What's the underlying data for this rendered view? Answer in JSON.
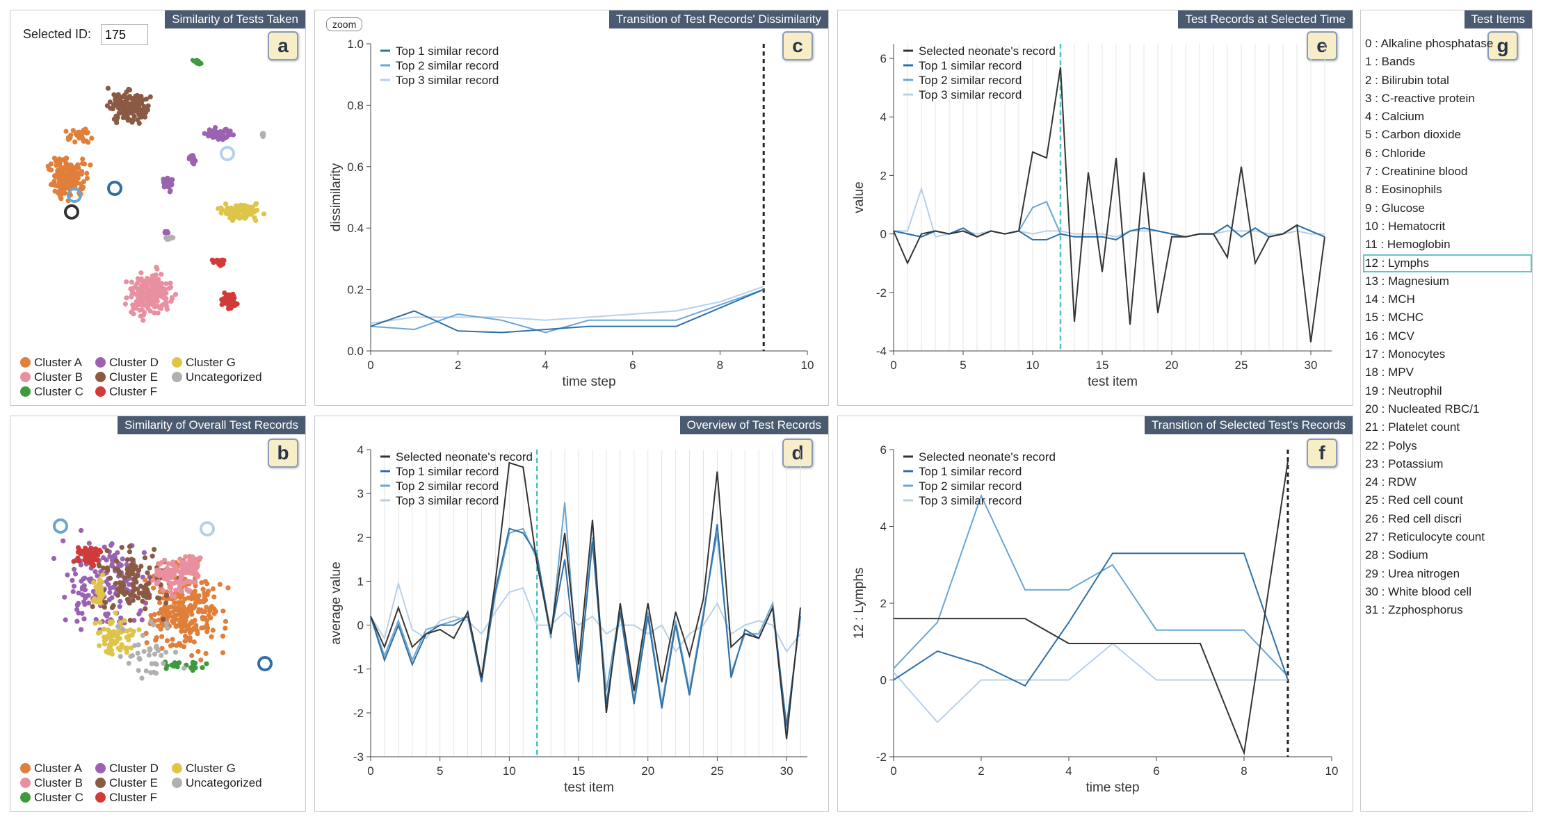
{
  "colors": {
    "cluster_a": "#e07f3a",
    "cluster_b": "#e890a0",
    "cluster_c": "#3e9a3f",
    "cluster_d": "#9a62b0",
    "cluster_e": "#8a5a44",
    "cluster_f": "#d23a3a",
    "cluster_g": "#dfc44a",
    "uncategorized": "#b0b0b0",
    "selected": "#333333",
    "top1": "#2f6fa5",
    "top2": "#6aa6d2",
    "top3": "#b7d0e8",
    "marker": "#4fc2c2"
  },
  "panels": {
    "a": {
      "title": "Similarity of Tests Taken",
      "letter": "a"
    },
    "b": {
      "title": "Similarity of Overall Test Records",
      "letter": "b"
    },
    "c": {
      "title": "Transition of Test Records' Dissimilarity",
      "letter": "c"
    },
    "d": {
      "title": "Overview of Test Records",
      "letter": "d"
    },
    "e": {
      "title": "Test Records at Selected Time",
      "letter": "e"
    },
    "f": {
      "title": "Transition of Selected Test's Records",
      "letter": "f"
    },
    "g": {
      "title": "Test Items",
      "letter": "g"
    }
  },
  "selected_id_label": "Selected ID:",
  "selected_id_value": "175",
  "zoom_label": "zoom",
  "cluster_legend": [
    "Cluster A",
    "Cluster D",
    "Cluster G",
    "Cluster B",
    "Cluster E",
    "Uncategorized",
    "Cluster C",
    "Cluster F"
  ],
  "test_items": [
    "0 : Alkaline phosphatase",
    "1 : Bands",
    "2 : Bilirubin total",
    "3 : C-reactive protein",
    "4 : Calcium",
    "5 : Carbon dioxide",
    "6 : Chloride",
    "7 : Creatinine blood",
    "8 : Eosinophils",
    "9 : Glucose",
    "10 : Hematocrit",
    "11 : Hemoglobin",
    "12 : Lymphs",
    "13 : Magnesium",
    "14 : MCH",
    "15 : MCHC",
    "16 : MCV",
    "17 : Monocytes",
    "18 : MPV",
    "19 : Neutrophil",
    "20 : Nucleated RBC/1",
    "21 : Platelet count",
    "22 : Polys",
    "23 : Potassium",
    "24 : RDW",
    "25 : Red cell count",
    "26 : Red cell discri",
    "27 : Reticulocyte count",
    "28 : Sodium",
    "29 : Urea nitrogen",
    "30 : White blood cell",
    "31 : Zzphosphorus"
  ],
  "selected_test_index": 12,
  "chart_data": [
    {
      "id": "c",
      "type": "line",
      "title": "Transition of Test Records' Dissimilarity",
      "xlabel": "time step",
      "ylabel": "dissimilarity",
      "xlim": [
        0,
        10
      ],
      "ylim": [
        0,
        1
      ],
      "xticks": [
        0,
        2,
        4,
        6,
        8,
        10
      ],
      "yticks": [
        0.0,
        0.2,
        0.4,
        0.6,
        0.8,
        1.0
      ],
      "ytick_labels": [
        "0.0",
        "0.2",
        "0.4",
        "0.6",
        "0.8",
        "1.0"
      ],
      "marker_x": 9,
      "legend": [
        "Top 1 similar record",
        "Top 2 similar record",
        "Top 3 similar record"
      ],
      "x": [
        0,
        1,
        2,
        3,
        4,
        5,
        6,
        7,
        8,
        9
      ],
      "series": [
        {
          "name": "Top 1 similar record",
          "values": [
            0.08,
            0.13,
            0.065,
            0.06,
            0.07,
            0.08,
            0.08,
            0.08,
            0.14,
            0.2
          ]
        },
        {
          "name": "Top 2 similar record",
          "values": [
            0.08,
            0.07,
            0.12,
            0.1,
            0.06,
            0.1,
            0.1,
            0.1,
            0.15,
            0.2
          ]
        },
        {
          "name": "Top 3 similar record",
          "values": [
            0.09,
            0.11,
            0.11,
            0.11,
            0.1,
            0.11,
            0.12,
            0.13,
            0.16,
            0.21
          ]
        }
      ]
    },
    {
      "id": "d",
      "type": "line",
      "title": "Overview of Test Records",
      "xlabel": "test item",
      "ylabel": "average value",
      "xlim": [
        0,
        31.5
      ],
      "ylim": [
        -3,
        4
      ],
      "xticks": [
        0,
        5,
        10,
        15,
        20,
        25,
        30
      ],
      "yticks": [
        -3,
        -2,
        -1,
        0,
        1,
        2,
        3,
        4
      ],
      "marker_x": 12,
      "legend": [
        "Selected neonate's record",
        "Top 1 similar record",
        "Top 2 similar record",
        "Top 3 similar record"
      ],
      "x": [
        0,
        1,
        2,
        3,
        4,
        5,
        6,
        7,
        8,
        9,
        10,
        11,
        12,
        13,
        14,
        15,
        16,
        17,
        18,
        19,
        20,
        21,
        22,
        23,
        24,
        25,
        26,
        27,
        28,
        29,
        30,
        31
      ],
      "series": [
        {
          "name": "Selected neonate's record",
          "values": [
            0.2,
            -0.5,
            0.4,
            -0.5,
            -0.2,
            -0.1,
            -0.3,
            0.3,
            -1.2,
            1.0,
            3.7,
            3.6,
            1.4,
            -0.2,
            2.1,
            -0.9,
            2.4,
            -2.0,
            0.5,
            -1.5,
            0.5,
            -1.3,
            0.3,
            -0.7,
            0.6,
            3.5,
            -0.5,
            -0.2,
            -0.3,
            0.4,
            -2.6,
            0.4
          ]
        },
        {
          "name": "Top 1 similar record",
          "values": [
            0.2,
            -0.8,
            0.0,
            -0.9,
            -0.2,
            0.0,
            0.0,
            0.2,
            -1.3,
            0.8,
            2.2,
            2.1,
            1.6,
            -0.2,
            1.5,
            -1.3,
            1.9,
            -1.8,
            0.3,
            -1.8,
            0.2,
            -1.9,
            0.0,
            -1.6,
            0.2,
            2.3,
            -1.2,
            -0.1,
            -0.3,
            0.4,
            -2.3,
            0.2
          ]
        },
        {
          "name": "Top 2 similar record",
          "values": [
            0.2,
            -0.7,
            0.1,
            -0.8,
            -0.1,
            0.0,
            0.1,
            0.2,
            -1.2,
            0.7,
            2.1,
            2.2,
            1.5,
            -0.3,
            2.8,
            -1.3,
            2.0,
            -1.5,
            0.4,
            -1.7,
            0.3,
            -1.8,
            0.1,
            -1.5,
            0.3,
            2.1,
            -1.1,
            -0.2,
            -0.2,
            0.5,
            -2.4,
            0.3
          ]
        },
        {
          "name": "Top 3 similar record",
          "values": [
            0.2,
            -0.3,
            0.95,
            -0.1,
            -0.3,
            0.1,
            0.2,
            0.1,
            -0.2,
            0.3,
            0.75,
            0.85,
            0.0,
            0.0,
            0.3,
            0.0,
            0.2,
            -0.2,
            0.0,
            0.0,
            -0.2,
            0.0,
            -0.6,
            -0.2,
            0.0,
            0.5,
            -0.2,
            0.0,
            0.1,
            0.0,
            -0.6,
            -0.2
          ]
        }
      ]
    },
    {
      "id": "e",
      "type": "line",
      "title": "Test Records at Selected Time",
      "xlabel": "test item",
      "ylabel": "value",
      "xlim": [
        0,
        31.5
      ],
      "ylim": [
        -4,
        6.5
      ],
      "xticks": [
        0,
        5,
        10,
        15,
        20,
        25,
        30
      ],
      "yticks": [
        -4,
        -2,
        0,
        2,
        4,
        6
      ],
      "marker_x": 12,
      "legend": [
        "Selected neonate's record",
        "Top 1 similar record",
        "Top 2 similar record",
        "Top 3 similar record"
      ],
      "x": [
        0,
        1,
        2,
        3,
        4,
        5,
        6,
        7,
        8,
        9,
        10,
        11,
        12,
        13,
        14,
        15,
        16,
        17,
        18,
        19,
        20,
        21,
        22,
        23,
        24,
        25,
        26,
        27,
        28,
        29,
        30,
        31
      ],
      "series": [
        {
          "name": "Selected neonate's record",
          "values": [
            0.1,
            -1.0,
            0.0,
            0.1,
            0.0,
            0.1,
            -0.1,
            0.1,
            0.0,
            0.1,
            2.8,
            2.6,
            5.7,
            -3.0,
            2.1,
            -1.3,
            2.6,
            -3.1,
            2.1,
            -2.7,
            -0.1,
            -0.1,
            0.0,
            0.0,
            -0.8,
            2.3,
            -1.0,
            -0.1,
            0.0,
            0.3,
            -3.7,
            -0.1
          ]
        },
        {
          "name": "Top 1 similar record",
          "values": [
            0.1,
            0.0,
            -0.1,
            0.1,
            0.0,
            0.2,
            -0.1,
            0.1,
            0.0,
            0.1,
            -0.2,
            -0.2,
            0.0,
            -0.1,
            -0.1,
            -0.1,
            -0.2,
            0.1,
            0.2,
            0.1,
            0.0,
            -0.1,
            0.0,
            0.0,
            0.3,
            -0.1,
            0.2,
            -0.1,
            0.0,
            0.3,
            0.1,
            -0.1
          ]
        },
        {
          "name": "Top 2 similar record",
          "values": [
            0.1,
            0.0,
            -0.1,
            0.1,
            0.0,
            0.2,
            -0.1,
            0.1,
            0.0,
            0.1,
            0.9,
            1.1,
            0.0,
            -0.1,
            -0.1,
            -0.1,
            -0.2,
            0.1,
            0.2,
            0.1,
            0.0,
            -0.1,
            0.0,
            0.0,
            0.3,
            -0.1,
            0.2,
            -0.1,
            0.0,
            0.3,
            0.1,
            -0.1
          ]
        },
        {
          "name": "Top 3 similar record",
          "values": [
            0.1,
            0.1,
            1.55,
            -0.1,
            0.0,
            0.1,
            0.0,
            0.1,
            0.0,
            0.1,
            0.0,
            0.1,
            0.1,
            0.0,
            0.0,
            0.0,
            -0.1,
            0.1,
            0.1,
            0.1,
            0.0,
            -0.1,
            0.0,
            0.0,
            0.1,
            0.1,
            0.1,
            0.0,
            0.0,
            0.1,
            0.0,
            0.0
          ]
        }
      ]
    },
    {
      "id": "f",
      "type": "line",
      "title": "Transition of Selected Test's Records",
      "xlabel": "time step",
      "ylabel": "12 : Lymphs",
      "xlim": [
        0,
        10
      ],
      "ylim": [
        -2,
        6
      ],
      "xticks": [
        0,
        2,
        4,
        6,
        8,
        10
      ],
      "yticks": [
        -2,
        0,
        2,
        4,
        6
      ],
      "marker_x": 9,
      "legend": [
        "Selected neonate's record",
        "Top 1 similar record",
        "Top 2 similar record",
        "Top 3 similar record"
      ],
      "x": [
        0,
        1,
        2,
        3,
        4,
        5,
        6,
        7,
        8,
        9
      ],
      "series": [
        {
          "name": "Selected neonate's record",
          "values": [
            1.6,
            1.6,
            1.6,
            1.6,
            0.95,
            0.95,
            0.95,
            0.95,
            -1.9,
            5.7
          ]
        },
        {
          "name": "Top 1 similar record",
          "values": [
            0.0,
            0.75,
            0.4,
            -0.15,
            1.5,
            3.3,
            3.3,
            3.3,
            3.3,
            0.0
          ]
        },
        {
          "name": "Top 2 similar record",
          "values": [
            0.3,
            1.5,
            4.8,
            2.35,
            2.35,
            3.0,
            1.3,
            1.3,
            1.3,
            0.1
          ]
        },
        {
          "name": "Top 3 similar record",
          "values": [
            0.2,
            -1.1,
            0.0,
            0.0,
            0.0,
            0.95,
            0.0,
            0.0,
            0.0,
            0.0
          ]
        }
      ]
    }
  ]
}
